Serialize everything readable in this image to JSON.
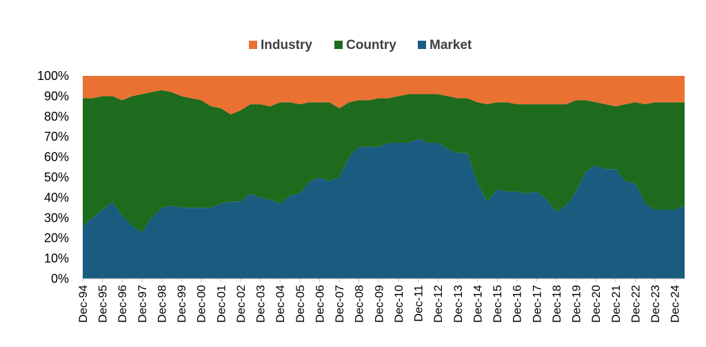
{
  "chart_data": {
    "type": "area",
    "stacked": true,
    "title": "",
    "xlabel": "",
    "ylabel": "",
    "ylim": [
      0,
      100
    ],
    "y_ticks": [
      "0%",
      "10%",
      "20%",
      "30%",
      "40%",
      "50%",
      "60%",
      "70%",
      "80%",
      "90%",
      "100%"
    ],
    "legend_position": "top-center",
    "grid": false,
    "x_ticks": [
      "Dec-94",
      "Dec-95",
      "Dec-96",
      "Dec-97",
      "Dec-98",
      "Dec-99",
      "Dec-00",
      "Dec-01",
      "Dec-02",
      "Dec-03",
      "Dec-04",
      "Dec-05",
      "Dec-06",
      "Dec-07",
      "Dec-08",
      "Dec-09",
      "Dec-10",
      "Dec-11",
      "Dec-12",
      "Dec-13",
      "Dec-14",
      "Dec-15",
      "Dec-16",
      "Dec-17",
      "Dec-18",
      "Dec-19",
      "Dec-20",
      "Dec-21",
      "Dec-22",
      "Dec-23",
      "Dec-24"
    ],
    "x": [
      "Dec-94",
      "Jun-95",
      "Dec-95",
      "Jun-96",
      "Dec-96",
      "Jun-97",
      "Dec-97",
      "Jun-98",
      "Dec-98",
      "Jun-99",
      "Dec-99",
      "Jun-00",
      "Dec-00",
      "Jun-01",
      "Dec-01",
      "Jun-02",
      "Dec-02",
      "Jun-03",
      "Dec-03",
      "Jun-04",
      "Dec-04",
      "Jun-05",
      "Dec-05",
      "Jun-06",
      "Dec-06",
      "Jun-07",
      "Dec-07",
      "Jun-08",
      "Dec-08",
      "Jun-09",
      "Dec-09",
      "Jun-10",
      "Dec-10",
      "Jun-11",
      "Dec-11",
      "Jun-12",
      "Dec-12",
      "Jun-13",
      "Dec-13",
      "Jun-14",
      "Dec-14",
      "Jun-15",
      "Dec-15",
      "Jun-16",
      "Dec-16",
      "Jun-17",
      "Dec-17",
      "Jun-18",
      "Dec-18",
      "Jun-19",
      "Dec-19",
      "Jun-20",
      "Dec-20",
      "Jun-21",
      "Dec-21",
      "Jun-22",
      "Dec-22",
      "Jun-23",
      "Dec-23",
      "Jun-24",
      "Dec-24",
      "Mar-25"
    ],
    "series": [
      {
        "name": "Market",
        "color": "#1a5c80",
        "values": [
          26,
          30,
          34,
          38,
          31,
          26,
          23,
          30,
          35,
          36,
          35,
          35,
          35,
          35,
          37,
          38,
          38,
          42,
          40,
          39,
          37,
          41,
          42,
          48,
          50,
          48,
          50,
          60,
          65,
          65,
          65,
          67,
          67,
          67,
          69,
          67,
          67,
          64,
          62,
          62,
          47,
          38,
          44,
          43,
          43,
          42,
          43,
          39,
          33,
          36,
          43,
          53,
          56,
          54,
          54,
          48,
          47,
          37,
          34,
          34,
          34,
          36
        ]
      },
      {
        "name": "Country",
        "color": "#1e6b1e",
        "values": [
          63,
          59,
          56,
          52,
          57,
          64,
          68,
          62,
          58,
          56,
          55,
          54,
          53,
          50,
          47,
          43,
          45,
          44,
          46,
          46,
          50,
          46,
          44,
          39,
          37,
          39,
          34,
          27,
          23,
          23,
          24,
          22,
          23,
          24,
          22,
          24,
          24,
          26,
          27,
          27,
          40,
          48,
          43,
          44,
          43,
          44,
          43,
          47,
          53,
          50,
          45,
          35,
          31,
          32,
          31,
          38,
          40,
          49,
          53,
          53,
          53,
          51
        ]
      },
      {
        "name": "Industry",
        "color": "#e97132",
        "values": [
          11,
          11,
          10,
          10,
          12,
          10,
          9,
          8,
          7,
          8,
          10,
          11,
          12,
          15,
          16,
          19,
          17,
          14,
          14,
          15,
          13,
          13,
          14,
          13,
          13,
          13,
          16,
          13,
          12,
          12,
          11,
          11,
          10,
          9,
          9,
          9,
          9,
          10,
          11,
          11,
          13,
          14,
          13,
          13,
          14,
          14,
          14,
          14,
          14,
          14,
          12,
          12,
          13,
          14,
          15,
          14,
          13,
          14,
          13,
          13,
          13,
          13
        ]
      }
    ]
  }
}
